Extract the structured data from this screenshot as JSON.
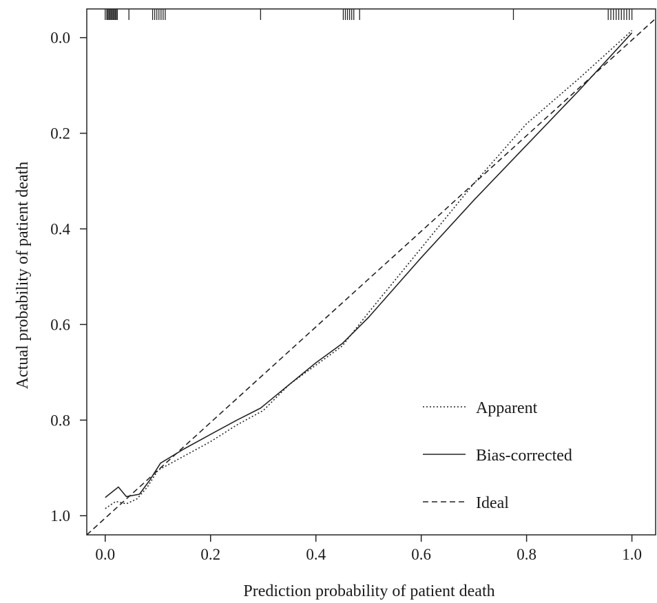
{
  "chart_data": {
    "type": "line",
    "title": "",
    "xlabel": "Prediction probability of patient death",
    "ylabel": "Actual probability of patient death",
    "xlim": [
      -0.035,
      1.045
    ],
    "ylim": [
      -0.06,
      1.04
    ],
    "y_axis_direction": "reversed",
    "x_ticks": [
      0.0,
      0.2,
      0.4,
      0.6,
      0.8,
      1.0
    ],
    "x_tick_labels": [
      "0.0",
      "0.2",
      "0.4",
      "0.6",
      "0.8",
      "1.0"
    ],
    "y_ticks": [
      0.0,
      0.2,
      0.4,
      0.6,
      0.8,
      1.0
    ],
    "y_tick_labels": [
      "0.0",
      "0.2",
      "0.4",
      "0.6",
      "0.8",
      "1.0"
    ],
    "grid": false,
    "legend_position": "bottom-right",
    "series": [
      {
        "name": "Apparent",
        "style": "dotted",
        "color": "#222222",
        "x": [
          0.0,
          0.02,
          0.04,
          0.06,
          0.08,
          0.1,
          0.15,
          0.2,
          0.25,
          0.3,
          0.35,
          0.4,
          0.45,
          0.5,
          0.6,
          0.7,
          0.8,
          0.9,
          1.0
        ],
        "y": [
          0.985,
          0.97,
          0.975,
          0.965,
          0.94,
          0.905,
          0.875,
          0.845,
          0.81,
          0.78,
          0.725,
          0.685,
          0.645,
          0.575,
          0.44,
          0.305,
          0.18,
          0.085,
          -0.015
        ]
      },
      {
        "name": "Bias-corrected",
        "style": "solid",
        "color": "#222222",
        "x": [
          0.0,
          0.025,
          0.04,
          0.065,
          0.085,
          0.105,
          0.15,
          0.2,
          0.25,
          0.295,
          0.35,
          0.4,
          0.45,
          0.5,
          0.6,
          0.7,
          0.8,
          0.9,
          1.0
        ],
        "y": [
          0.962,
          0.94,
          0.96,
          0.955,
          0.925,
          0.89,
          0.86,
          0.83,
          0.8,
          0.775,
          0.725,
          0.68,
          0.64,
          0.585,
          0.46,
          0.34,
          0.225,
          0.11,
          -0.01
        ]
      },
      {
        "name": "Ideal",
        "style": "dashed",
        "color": "#222222",
        "x": [
          -0.035,
          1.045
        ],
        "y": [
          1.04,
          -0.04
        ]
      }
    ],
    "rug_top_x": [
      0.0,
      0.003,
      0.005,
      0.007,
      0.009,
      0.011,
      0.013,
      0.015,
      0.017,
      0.019,
      0.021,
      0.023,
      0.045,
      0.09,
      0.094,
      0.098,
      0.102,
      0.106,
      0.11,
      0.114,
      0.295,
      0.452,
      0.456,
      0.46,
      0.464,
      0.468,
      0.472,
      0.483,
      0.775,
      0.955,
      0.96,
      0.965,
      0.97,
      0.975,
      0.98,
      0.985,
      0.99,
      0.995,
      1.0
    ]
  }
}
